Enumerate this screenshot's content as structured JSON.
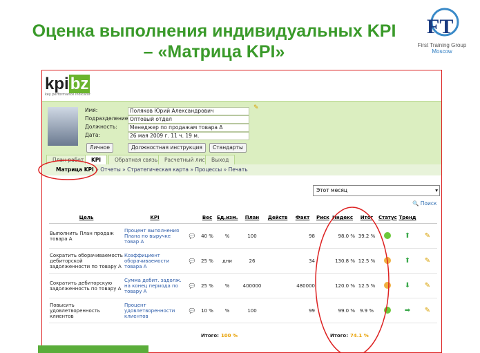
{
  "header": {
    "title_line1": "Оценка выполнения индивидуальных KPI",
    "title_line2": "– «Матрица KPI»",
    "logo_name": "First Training Group",
    "logo_city": "Moscow"
  },
  "app": {
    "logo": "kpi",
    "logo_suffix": "bz",
    "logo_tagline": "key performance indicator",
    "profile": [
      {
        "label": "Имя:",
        "value": "Поляков Юрий Александрович"
      },
      {
        "label": "Подразделение:",
        "value": "Оптовый отдел"
      },
      {
        "label": "Должность:",
        "value": "Менеджер по продажам товара А"
      },
      {
        "label": "Дата:",
        "value": "26 мая 2009 г. 11 ч. 19 м."
      }
    ],
    "buttons": [
      "Личное",
      "Должностная инструкция",
      "Стандарты"
    ],
    "tabs": [
      "План работ",
      "KPI",
      "Обратная связь",
      "Расчетный лист",
      "Выход"
    ],
    "breadcrumb": [
      "Матрица KPI",
      "Отчеты",
      "Стратегическая карта",
      "Процессы",
      "Печать"
    ],
    "period": "Этот месяц",
    "search": "Поиск",
    "table": {
      "columns": [
        "Цель",
        "KPI",
        "Вес",
        "Ед.изм.",
        "План",
        "Действ",
        "Факт",
        "Риск",
        "Индекс",
        "Итог",
        "Статус",
        "Тренд"
      ],
      "rows": [
        {
          "goal": "Выполнить План продаж товара А",
          "kpi": "Процент выполнения Плана по выручке товар А",
          "weight": "40 %",
          "unit": "%",
          "plan": "100",
          "fact": "98",
          "index": "98.0 %",
          "total": "39.2 %",
          "status": "#6cc93a",
          "trend": "up"
        },
        {
          "goal": "Сократить оборачиваемость дебиторской задолженности по товару А",
          "kpi": "Коэффициент оборачиваемости товара А",
          "weight": "25 %",
          "unit": "дни",
          "plan": "26",
          "fact": "34",
          "index": "130.8 %",
          "total": "12.5 %",
          "status": "#f0b040",
          "trend": "up"
        },
        {
          "goal": "Сократить дебиторскую задолженность по товару А",
          "kpi": "Сумма дебит. задолж. на конец периода по товару А",
          "weight": "25 %",
          "unit": "%",
          "plan": "400000",
          "fact": "480000",
          "index": "120.0 %",
          "total": "12.5 %",
          "status": "#f0b040",
          "trend": "down"
        },
        {
          "goal": "Повысить удовлетворенность клиентов",
          "kpi": "Процент удовлетворенности клиентов",
          "weight": "10 %",
          "unit": "%",
          "plan": "100",
          "fact": "99",
          "index": "99.0 %",
          "total": "9.9 %",
          "status": "#6cc93a",
          "trend": "right"
        }
      ],
      "total_label": "Итого:",
      "weight_total": "100 %",
      "score_total": "74.1 %"
    }
  }
}
